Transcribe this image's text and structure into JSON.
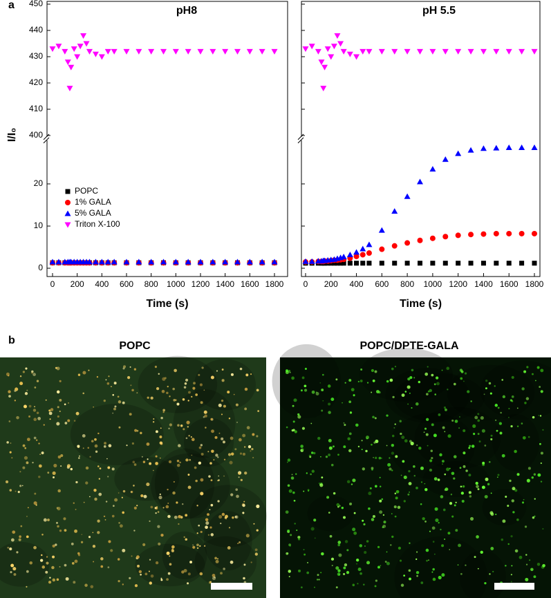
{
  "figure": {
    "panel_a_label": "a",
    "panel_b_label": "b",
    "images": [
      {
        "title": "POPC"
      },
      {
        "title": "POPC/DPTE-GALA"
      }
    ]
  },
  "chart_data": [
    {
      "type": "scatter",
      "title": "pH8",
      "xlabel": "Time (s)",
      "ylabel": "I/I₀",
      "x": [
        0,
        50,
        100,
        125,
        140,
        150,
        175,
        200,
        225,
        250,
        275,
        300,
        350,
        400,
        450,
        500,
        600,
        700,
        800,
        900,
        1000,
        1100,
        1200,
        1300,
        1400,
        1500,
        1600,
        1700,
        1800
      ],
      "xlim": [
        0,
        1800
      ],
      "xticks": [
        0,
        200,
        400,
        600,
        800,
        1000,
        1200,
        1400,
        1600,
        1800
      ],
      "ylim_segments": [
        [
          0,
          30
        ],
        [
          400,
          450
        ]
      ],
      "yticks": [
        0,
        10,
        20,
        400,
        410,
        420,
        430,
        440,
        450
      ],
      "legend": "center-left",
      "series": [
        {
          "name": "POPC",
          "color": "#000000",
          "marker": "square",
          "values": [
            1.3,
            1.3,
            1.3,
            1.3,
            1.3,
            1.3,
            1.3,
            1.3,
            1.3,
            1.3,
            1.3,
            1.3,
            1.3,
            1.3,
            1.3,
            1.3,
            1.3,
            1.3,
            1.3,
            1.3,
            1.3,
            1.3,
            1.3,
            1.3,
            1.3,
            1.3,
            1.3,
            1.3,
            1.3
          ]
        },
        {
          "name": "1% GALA",
          "color": "#ff0000",
          "marker": "circle",
          "values": [
            1.3,
            1.3,
            1.3,
            1.3,
            1.3,
            1.3,
            1.3,
            1.3,
            1.3,
            1.3,
            1.3,
            1.3,
            1.3,
            1.3,
            1.3,
            1.3,
            1.3,
            1.3,
            1.3,
            1.3,
            1.3,
            1.3,
            1.3,
            1.3,
            1.3,
            1.3,
            1.3,
            1.3,
            1.3
          ]
        },
        {
          "name": "5% GALA",
          "color": "#0000ff",
          "marker": "triangle-up",
          "values": [
            1.5,
            1.5,
            1.5,
            1.5,
            1.5,
            1.5,
            1.5,
            1.5,
            1.5,
            1.5,
            1.5,
            1.5,
            1.5,
            1.5,
            1.5,
            1.5,
            1.5,
            1.5,
            1.5,
            1.5,
            1.5,
            1.5,
            1.5,
            1.5,
            1.5,
            1.5,
            1.5,
            1.5,
            1.5
          ]
        },
        {
          "name": "Triton X-100",
          "color": "#ff00ff",
          "marker": "triangle-down",
          "values": [
            433,
            434,
            432,
            428,
            418,
            426,
            433,
            430,
            434,
            438,
            435,
            432,
            431,
            430,
            432,
            432,
            432,
            432,
            432,
            432,
            432,
            432,
            432,
            432,
            432,
            432,
            432,
            432,
            432
          ]
        }
      ]
    },
    {
      "type": "scatter",
      "title": "pH 5.5",
      "xlabel": "Time (s)",
      "x": [
        0,
        50,
        100,
        125,
        140,
        150,
        175,
        200,
        225,
        250,
        275,
        300,
        350,
        400,
        450,
        500,
        600,
        700,
        800,
        900,
        1000,
        1100,
        1200,
        1300,
        1400,
        1500,
        1600,
        1700,
        1800
      ],
      "xlim": [
        0,
        1800
      ],
      "xticks": [
        0,
        200,
        400,
        600,
        800,
        1000,
        1200,
        1400,
        1600,
        1800
      ],
      "ylim_segments": [
        [
          0,
          30
        ],
        [
          400,
          450
        ]
      ],
      "yticks": [
        0,
        10,
        20,
        400,
        410,
        420,
        430,
        440,
        450
      ],
      "legend": false,
      "series": [
        {
          "color": "#000000",
          "marker": "square",
          "values": [
            1.2,
            1.2,
            1.2,
            1.2,
            1.2,
            1.2,
            1.2,
            1.2,
            1.2,
            1.2,
            1.2,
            1.2,
            1.2,
            1.2,
            1.2,
            1.2,
            1.2,
            1.2,
            1.2,
            1.2,
            1.2,
            1.2,
            1.2,
            1.2,
            1.2,
            1.2,
            1.2,
            1.2,
            1.2
          ]
        },
        {
          "color": "#ff0000",
          "marker": "circle",
          "values": [
            1.5,
            1.5,
            1.6,
            1.6,
            1.6,
            1.7,
            1.7,
            1.8,
            1.9,
            1.9,
            2,
            2.1,
            2.4,
            2.8,
            3.2,
            3.6,
            4.5,
            5.3,
            6,
            6.6,
            7.1,
            7.5,
            7.8,
            8,
            8.1,
            8.2,
            8.2,
            8.2,
            8.2
          ]
        },
        {
          "color": "#0000ff",
          "marker": "triangle-up",
          "values": [
            1.6,
            1.6,
            1.7,
            1.7,
            1.8,
            1.8,
            1.9,
            2,
            2.1,
            2.3,
            2.5,
            2.7,
            3.2,
            3.8,
            4.6,
            5.6,
            9,
            13.5,
            17,
            20.5,
            23.5,
            25.8,
            27.2,
            28,
            28.4,
            28.5,
            28.6,
            28.6,
            28.6
          ]
        },
        {
          "color": "#ff00ff",
          "marker": "triangle-down",
          "values": [
            433,
            434,
            432,
            428,
            418,
            426,
            433,
            430,
            434,
            438,
            435,
            432,
            431,
            430,
            432,
            432,
            432,
            432,
            432,
            432,
            432,
            432,
            432,
            432,
            432,
            432,
            432,
            432,
            432
          ]
        }
      ]
    }
  ]
}
